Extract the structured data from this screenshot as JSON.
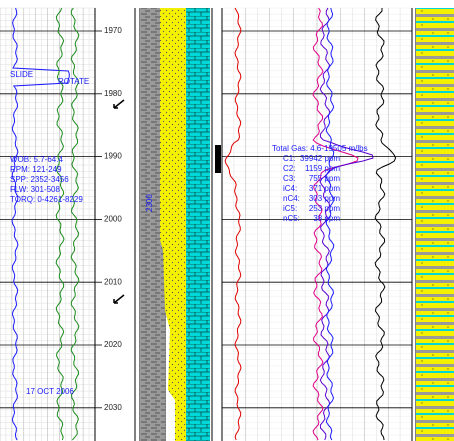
{
  "depth_track": {
    "labels": [
      "1970",
      "1980",
      "1990",
      "2000",
      "2010",
      "2020",
      "2030"
    ]
  },
  "left_track": {
    "slide": "SLIDE",
    "rotate": "ROTATE",
    "parameters": [
      "WOB: 5.7-64.4",
      "RPM: 121-249",
      "SPP: 2352-3456",
      "FLW: 301-508",
      "TORQ: 0-4261-8229"
    ],
    "date": "17 OCT 2006"
  },
  "lithology": {
    "marker": "2300"
  },
  "gas_box": {
    "title": "Total Gas: 4.6-19505 m/lbs",
    "rows": [
      [
        "C1:",
        "39942 ppm"
      ],
      [
        "C2:",
        "1159 ppm"
      ],
      [
        "C3:",
        "755 ppm"
      ],
      [
        "iC4:",
        "371 ppm"
      ],
      [
        "nC4:",
        "303 ppm"
      ],
      [
        "iC5:",
        "253 ppm"
      ],
      [
        "nC5:",
        "38 ppm"
      ]
    ]
  }
}
